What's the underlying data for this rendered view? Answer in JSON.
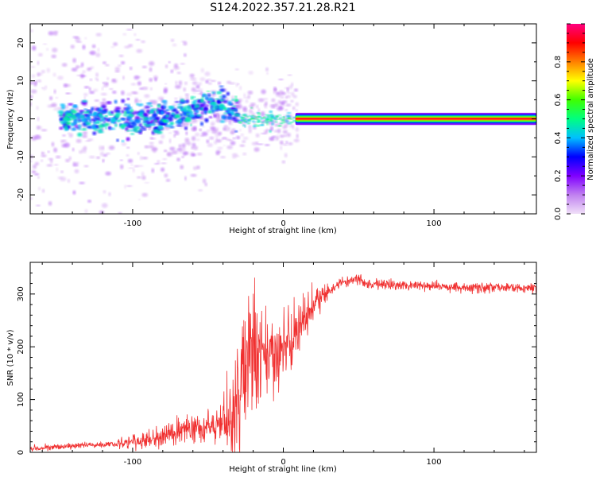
{
  "title": "S124.2022.357.21.28.R21",
  "colors": {
    "axis": "#000000",
    "snr_line": "#f03030",
    "spectrogram_background": "#ffffff",
    "colorbar_stops": [
      "#f0e0f8",
      "#c080f0",
      "#8000ff",
      "#0000ff",
      "#00c0ff",
      "#00ff80",
      "#40ff00",
      "#ffff00",
      "#ff8000",
      "#ff0000",
      "#ff0080"
    ]
  },
  "chart_data": [
    {
      "type": "heatmap",
      "title": "",
      "xlabel": "Height of straight line (km)",
      "ylabel": "Frequency (Hz)",
      "xlim": [
        -168,
        168
      ],
      "ylim": [
        -25,
        25
      ],
      "x_ticks": [
        -100,
        0,
        100
      ],
      "y_ticks": [
        -20,
        -10,
        0,
        10,
        20
      ],
      "grid": false,
      "colorbar": {
        "label": "Normalized spectral amplitude",
        "range": [
          0,
          1
        ],
        "ticks": [
          "0.0",
          "0.2",
          "0.4",
          "0.6",
          "0.8"
        ]
      },
      "features": {
        "carrier_line": {
          "x_start": 8,
          "x_end": 168,
          "frequency_hz": 0,
          "normalized_amplitude": 0.9
        },
        "transition_region": {
          "x_start": -30,
          "x_end": 8,
          "frequency_hz_min": -2,
          "frequency_hz_max": 2
        },
        "scintillation_region": {
          "x_start": -168,
          "x_end": -30,
          "frequency_hz_min": -25,
          "frequency_hz_max": 25
        }
      }
    },
    {
      "type": "line",
      "title": "",
      "xlabel": "Height of straight line (km)",
      "ylabel": "SNR (10 * v/v)",
      "xlim": [
        -168,
        168
      ],
      "ylim": [
        0,
        360
      ],
      "x_ticks": [
        -100,
        0,
        100
      ],
      "y_ticks": [
        0,
        100,
        200,
        300
      ],
      "grid": false,
      "series": [
        {
          "x": [
            -168,
            -150,
            -130,
            -110,
            -100,
            -90,
            -80,
            -70,
            -60,
            -50,
            -40,
            -35,
            -30,
            -28,
            -25,
            -20,
            -15,
            -10,
            -5,
            0,
            5,
            10,
            15,
            20,
            25,
            30,
            35,
            40,
            45,
            50,
            55,
            60,
            70,
            80,
            90,
            100,
            110,
            120,
            130,
            140,
            150,
            160,
            168
          ],
          "y": [
            8,
            10,
            14,
            16,
            20,
            22,
            30,
            40,
            45,
            50,
            55,
            65,
            90,
            130,
            170,
            180,
            175,
            185,
            190,
            195,
            210,
            235,
            255,
            275,
            292,
            305,
            315,
            322,
            325,
            328,
            320,
            318,
            320,
            318,
            316,
            315,
            314,
            313,
            312,
            313,
            312,
            311,
            312
          ]
        }
      ]
    }
  ]
}
